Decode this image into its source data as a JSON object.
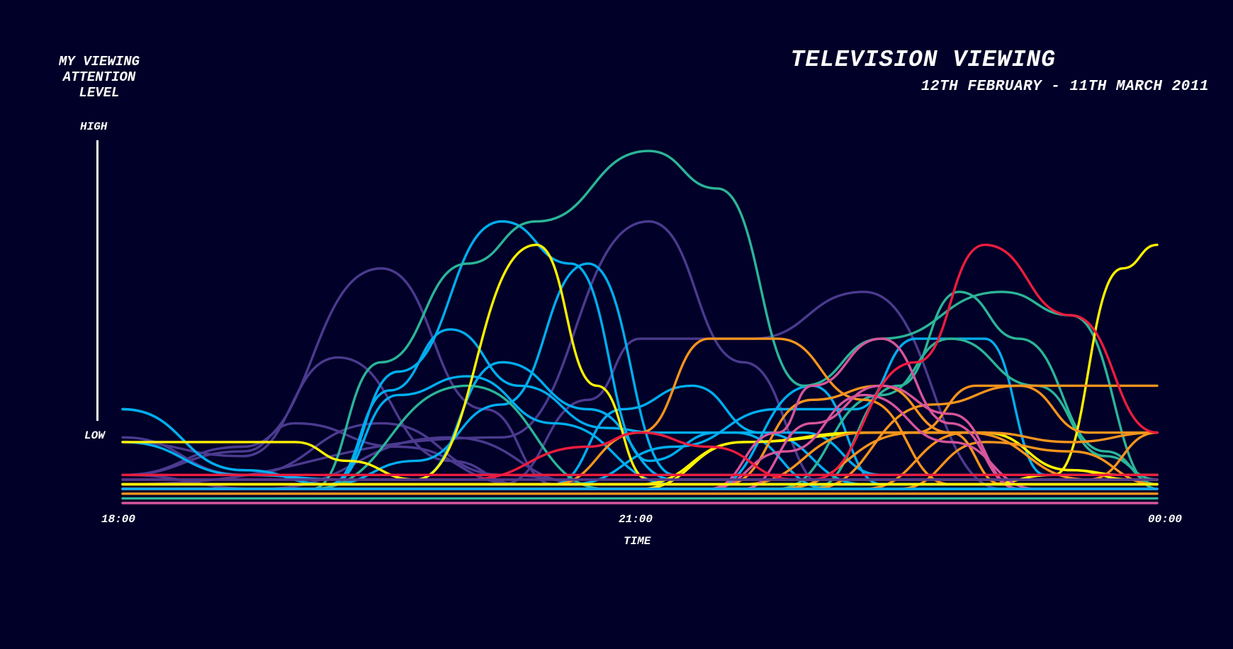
{
  "header": {
    "title": "TELEVISION VIEWING",
    "subtitle": "12TH FEBRUARY - 11TH MARCH 2011"
  },
  "y_axis": {
    "title_lines": [
      "MY VIEWING",
      "ATTENTION",
      "LEVEL"
    ],
    "high_label": "HIGH",
    "low_label": "LOW"
  },
  "x_axis": {
    "label": "TIME",
    "ticks": [
      "18:00",
      "21:00",
      "00:00"
    ]
  },
  "chart_data": {
    "type": "line",
    "title": "TELEVISION VIEWING",
    "subtitle": "12TH FEBRUARY - 11TH MARCH 2011",
    "xlabel": "TIME",
    "ylabel": "MY VIEWING ATTENTION LEVEL",
    "x_ticks": [
      "18:00",
      "21:00",
      "00:00"
    ],
    "y_ticks": [
      "LOW",
      "HIGH"
    ],
    "xlim": [
      0,
      6
    ],
    "ylim": [
      -1.5,
      6.5
    ],
    "x_unit": "hours after 18:00",
    "curve": "smooth",
    "grid": false,
    "legend": "none",
    "background": "#000028",
    "colors": {
      "purple": "#4B3A8F",
      "cyan": "#00AEEF",
      "teal": "#2BB598",
      "yellow": "#FFF200",
      "orange": "#F7941D",
      "pink": "#D6559B",
      "red": "#ED1C3E",
      "white": "#FFFFFF"
    },
    "series": [
      {
        "color": "#4B3A8F",
        "x": [
          0,
          0.7,
          1.5,
          2.1,
          2.5,
          3.0,
          6
        ],
        "y": [
          -0.9,
          -0.3,
          3.5,
          0.5,
          -1.1,
          -1.1,
          -1.1
        ]
      },
      {
        "color": "#4B3A8F",
        "x": [
          0,
          0.7,
          1.25,
          1.9,
          2.3,
          6
        ],
        "y": [
          -0.2,
          -0.5,
          1.6,
          -0.6,
          -1.1,
          -1.1
        ]
      },
      {
        "color": "#4B3A8F",
        "x": [
          0,
          0.7,
          1.0,
          1.6,
          2.3,
          6
        ],
        "y": [
          -0.9,
          -0.4,
          0.2,
          -0.3,
          -1.1,
          -1.1
        ]
      },
      {
        "color": "#4B3A8F",
        "x": [
          0,
          0.7,
          1.5,
          2.2,
          2.8,
          6
        ],
        "y": [
          -0.1,
          -0.9,
          0.2,
          -0.9,
          -1.1,
          -1.1
        ]
      },
      {
        "color": "#4B3A8F",
        "x": [
          0,
          0.8,
          1.9,
          2.7,
          6
        ],
        "y": [
          -0.9,
          -1.2,
          -0.1,
          -1.1,
          -1.1
        ]
      },
      {
        "color": "#4B3A8F",
        "x": [
          0,
          2.2,
          2.7,
          3.0,
          3.65,
          4.3,
          5.1,
          6
        ],
        "y": [
          -1.1,
          -1.1,
          0.7,
          2.0,
          2.0,
          3.0,
          -1.2,
          -1.2
        ]
      },
      {
        "color": "#4B3A8F",
        "x": [
          0,
          2.2,
          3.05,
          3.6,
          4.1,
          6
        ],
        "y": [
          -1.1,
          -0.1,
          4.5,
          1.5,
          -1.2,
          -1.2
        ]
      },
      {
        "color": "#00AEEF",
        "x": [
          0,
          0.7,
          1.3,
          1.7,
          2.2,
          2.7,
          3.2,
          6
        ],
        "y": [
          -0.2,
          -0.9,
          -1.0,
          -1.0,
          1.5,
          0.5,
          -1.0,
          -1.0
        ]
      },
      {
        "color": "#00AEEF",
        "x": [
          0,
          0.7,
          1.2,
          1.7,
          6
        ],
        "y": [
          0.5,
          -0.8,
          -1.1,
          -1.1,
          -1.1
        ]
      },
      {
        "color": "#00AEEF",
        "x": [
          0,
          0.7,
          1.2,
          1.7,
          2.2,
          2.7,
          3.2,
          6
        ],
        "y": [
          0.5,
          -0.8,
          -1.1,
          -0.6,
          0.6,
          3.6,
          -0.9,
          -0.9
        ]
      },
      {
        "color": "#00AEEF",
        "x": [
          0,
          1.2,
          1.6,
          2.2,
          2.6,
          3.05,
          3.45,
          3.95,
          4.4,
          6
        ],
        "y": [
          -1.1,
          -1.1,
          1.3,
          4.5,
          3.6,
          -0.6,
          0.0,
          0.0,
          -0.9,
          -0.9
        ]
      },
      {
        "color": "#00AEEF",
        "x": [
          0,
          1.2,
          1.55,
          1.9,
          2.3,
          2.8,
          3.1,
          3.55,
          4.1,
          6
        ],
        "y": [
          -1.1,
          -1.1,
          0.9,
          2.2,
          1.0,
          0.1,
          0.0,
          0.0,
          -1.2,
          -1.2
        ]
      },
      {
        "color": "#00AEEF",
        "x": [
          0,
          1.2,
          1.6,
          2.0,
          2.5,
          3.2,
          3.6,
          6
        ],
        "y": [
          -1.1,
          -1.1,
          0.8,
          1.2,
          0.2,
          -1.1,
          -1.1,
          -1.1
        ]
      },
      {
        "color": "#00AEEF",
        "x": [
          0,
          2.5,
          2.9,
          3.3,
          3.7,
          4.3,
          6
        ],
        "y": [
          -1.1,
          -1.1,
          0.5,
          1.0,
          0.0,
          -1.1,
          -1.1
        ]
      },
      {
        "color": "#00AEEF",
        "x": [
          0,
          2.6,
          3.2,
          3.8,
          4.25,
          4.6,
          5.0,
          5.35,
          6
        ],
        "y": [
          -1.1,
          -1.1,
          -0.3,
          0.5,
          0.5,
          2.0,
          2.0,
          -0.9,
          -0.9
        ]
      },
      {
        "color": "#00AEEF",
        "x": [
          0,
          3.4,
          4.0,
          4.4,
          6
        ],
        "y": [
          -1.2,
          -1.2,
          1.0,
          -1.1,
          -1.1
        ]
      },
      {
        "color": "#2BB598",
        "x": [
          0,
          1.1,
          1.5,
          2.0,
          2.4,
          3.05,
          3.45,
          3.95,
          4.4,
          5.1,
          5.5,
          6
        ],
        "y": [
          -1.2,
          -1.2,
          1.5,
          3.6,
          4.5,
          6.0,
          5.2,
          1.0,
          2.0,
          3.0,
          2.5,
          -1.2
        ]
      },
      {
        "color": "#2BB598",
        "x": [
          0,
          1.1,
          2.0,
          2.8,
          6
        ],
        "y": [
          -1.2,
          -1.2,
          1.0,
          -1.2,
          -1.2
        ]
      },
      {
        "color": "#2BB598",
        "x": [
          0,
          3.8,
          4.4,
          4.8,
          5.3,
          5.7,
          6
        ],
        "y": [
          -1.2,
          -1.2,
          0.8,
          2.0,
          1.0,
          -0.5,
          -1.0
        ]
      },
      {
        "color": "#2BB598",
        "x": [
          0,
          4.0,
          4.5,
          4.85,
          5.2,
          5.7,
          6
        ],
        "y": [
          -1.2,
          -1.2,
          1.0,
          3.0,
          2.0,
          -0.4,
          -1.1
        ]
      },
      {
        "color": "#FFF200",
        "x": [
          0,
          1.0,
          1.3,
          1.7,
          2.4,
          2.75,
          3.05,
          3.35,
          6
        ],
        "y": [
          -0.2,
          -0.2,
          -0.6,
          -1.0,
          4.0,
          1.0,
          -1.0,
          -1.0,
          -1.0
        ]
      },
      {
        "color": "#FFF200",
        "x": [
          0,
          3.0,
          3.6,
          4.3,
          5.0,
          5.5,
          5.8,
          6
        ],
        "y": [
          -1.2,
          -1.2,
          -0.2,
          0.0,
          0.0,
          -0.8,
          -0.9,
          -0.9
        ]
      },
      {
        "color": "#FFF200",
        "x": [
          0,
          5.0,
          5.4,
          5.8,
          6
        ],
        "y": [
          -1.1,
          -1.1,
          -0.9,
          3.5,
          4.0
        ]
      },
      {
        "color": "#FFF200",
        "x": [
          0,
          3.0,
          3.6,
          4.4,
          5.0,
          5.5,
          5.85,
          6
        ],
        "y": [
          -1.1,
          -1.1,
          -0.2,
          0.0,
          0.0,
          -0.8,
          -1.0,
          -1.0
        ]
      },
      {
        "color": "#F7941D",
        "x": [
          0,
          2.5,
          3.0,
          3.4,
          3.8,
          4.3,
          4.8,
          5.3,
          6
        ],
        "y": [
          -1.1,
          -1.1,
          0.0,
          2.0,
          2.0,
          0.7,
          -1.1,
          -1.1,
          -1.1
        ]
      },
      {
        "color": "#F7941D",
        "x": [
          0,
          3.5,
          4.0,
          4.4,
          4.8,
          5.1,
          5.5,
          6
        ],
        "y": [
          -1.1,
          -1.1,
          0.7,
          1.0,
          0.0,
          -1.1,
          -1.1,
          -1.1
        ]
      },
      {
        "color": "#F7941D",
        "x": [
          0,
          3.8,
          4.6,
          4.95,
          5.4,
          6
        ],
        "y": [
          -1.2,
          -1.2,
          0.0,
          1.0,
          1.0,
          1.0
        ]
      },
      {
        "color": "#F7941D",
        "x": [
          0,
          4.0,
          4.7,
          5.2,
          5.6,
          6
        ],
        "y": [
          -1.2,
          -1.2,
          0.6,
          1.0,
          0.0,
          0.0
        ]
      },
      {
        "color": "#F7941D",
        "x": [
          0,
          3.6,
          4.3,
          5.0,
          5.5,
          6
        ],
        "y": [
          -1.1,
          -1.1,
          0.0,
          0.0,
          -0.2,
          0.0
        ]
      },
      {
        "color": "#F7941D",
        "x": [
          0,
          4.3,
          4.9,
          5.6,
          6
        ],
        "y": [
          -1.2,
          -1.2,
          0.0,
          -1.0,
          0.0
        ]
      },
      {
        "color": "#F7941D",
        "x": [
          0,
          4.5,
          5.0,
          5.5,
          6
        ],
        "y": [
          -1.2,
          -1.2,
          -0.2,
          -0.4,
          -1.1
        ]
      },
      {
        "color": "#D6559B",
        "x": [
          0,
          3.4,
          3.8,
          4.0,
          4.4,
          4.8,
          5.2,
          6
        ],
        "y": [
          -1.2,
          -1.2,
          0.0,
          1.0,
          2.0,
          0.2,
          -1.2,
          -1.2
        ]
      },
      {
        "color": "#D6559B",
        "x": [
          0,
          3.6,
          4.0,
          4.4,
          4.8,
          5.2,
          6
        ],
        "y": [
          -1.2,
          -1.2,
          0.2,
          1.0,
          0.4,
          -1.2,
          -1.2
        ]
      },
      {
        "color": "#D6559B",
        "x": [
          0,
          3.4,
          3.85,
          4.3,
          4.8,
          5.3,
          6
        ],
        "y": [
          -1.2,
          -1.2,
          -0.4,
          0.8,
          -0.2,
          -1.2,
          -1.2
        ]
      },
      {
        "color": "#ED1C3E",
        "x": [
          0,
          2.0,
          2.7,
          3.0,
          3.4,
          3.9,
          6
        ],
        "y": [
          -1.0,
          -1.0,
          -0.3,
          0.0,
          -0.3,
          -1.0,
          -1.0
        ]
      },
      {
        "color": "#ED1C3E",
        "x": [
          0,
          4.0,
          4.6,
          5.0,
          5.5,
          6
        ],
        "y": [
          -1.0,
          -1.0,
          1.5,
          4.0,
          2.5,
          0.0
        ]
      },
      {
        "color": "#ED1C3E",
        "x": [
          0,
          6
        ],
        "y": [
          -0.9,
          -0.9
        ]
      },
      {
        "color": "#4B3A8F",
        "x": [
          0,
          6
        ],
        "y": [
          -1.0,
          -1.0
        ]
      },
      {
        "color": "#FFF200",
        "x": [
          0,
          6
        ],
        "y": [
          -1.1,
          -1.1
        ]
      },
      {
        "color": "#00AEEF",
        "x": [
          0,
          6
        ],
        "y": [
          -1.2,
          -1.2
        ]
      },
      {
        "color": "#F7941D",
        "x": [
          0,
          6
        ],
        "y": [
          -1.3,
          -1.3
        ]
      },
      {
        "color": "#2BB598",
        "x": [
          0,
          6
        ],
        "y": [
          -1.4,
          -1.4
        ]
      },
      {
        "color": "#D6559B",
        "x": [
          0,
          6
        ],
        "y": [
          -1.5,
          -1.5
        ]
      }
    ]
  }
}
